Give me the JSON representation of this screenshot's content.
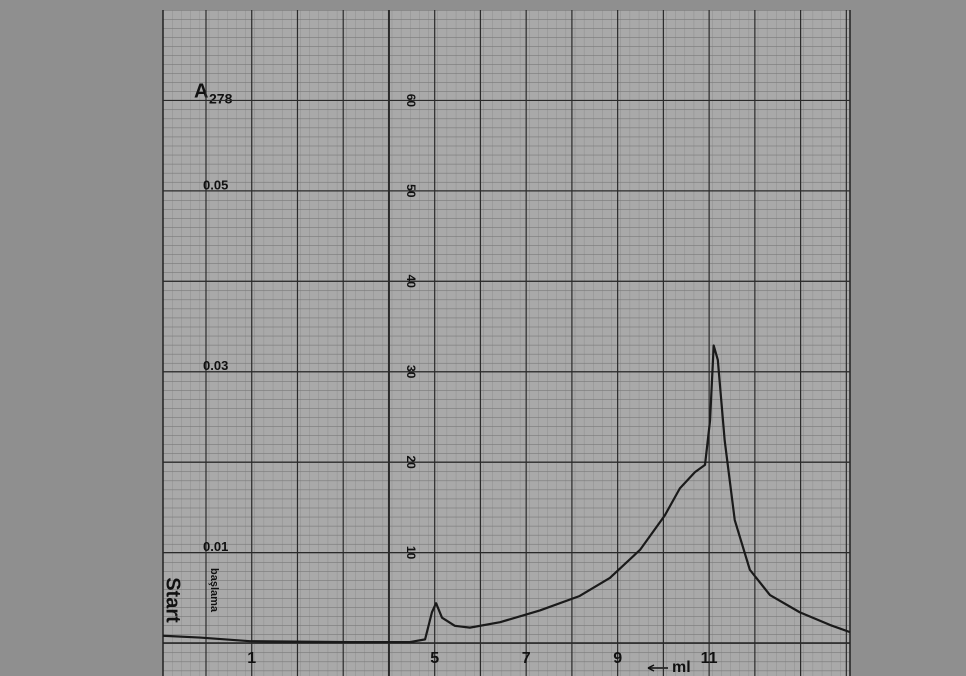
{
  "chart_data": {
    "type": "line",
    "ylabel_symbol": "A",
    "ylabel_subscript": "278",
    "xlabel": "ml",
    "start_label": "Start",
    "start_label_alt": "başlama",
    "x": [
      -0.94,
      -0.13,
      0.96,
      3.15,
      4.46,
      4.79,
      4.94,
      5.03,
      5.16,
      5.44,
      5.77,
      6.43,
      7.3,
      8.17,
      8.83,
      9.49,
      10.03,
      10.36,
      10.69,
      10.91,
      11.02,
      11.1,
      11.19,
      11.34,
      11.56,
      11.89,
      12.33,
      12.98,
      13.64,
      14.08
    ],
    "values": [
      0.0008,
      0.0006,
      0.0002,
      0.0001,
      0.0001,
      0.0004,
      0.0034,
      0.0044,
      0.0028,
      0.0019,
      0.0017,
      0.0023,
      0.0036,
      0.0052,
      0.0072,
      0.0103,
      0.0141,
      0.0171,
      0.0189,
      0.0197,
      0.0246,
      0.0329,
      0.0313,
      0.0224,
      0.0136,
      0.0081,
      0.0053,
      0.0034,
      0.002,
      0.0012
    ],
    "color": "#1a1a1a",
    "xlim": [
      -0.94,
      14.08
    ],
    "xticks": [
      1,
      5,
      7,
      9,
      11
    ],
    "xgrid": [
      0,
      1,
      2,
      3,
      4,
      5,
      6,
      7,
      8,
      9,
      10,
      11,
      12,
      13,
      14
    ],
    "ylim": [
      0,
      0.07
    ],
    "yticks": [
      0.01,
      0.03,
      0.05
    ],
    "y2lim": [
      0,
      70
    ],
    "y2ticks": [
      10,
      20,
      30,
      40,
      50,
      60
    ],
    "grid": true
  }
}
